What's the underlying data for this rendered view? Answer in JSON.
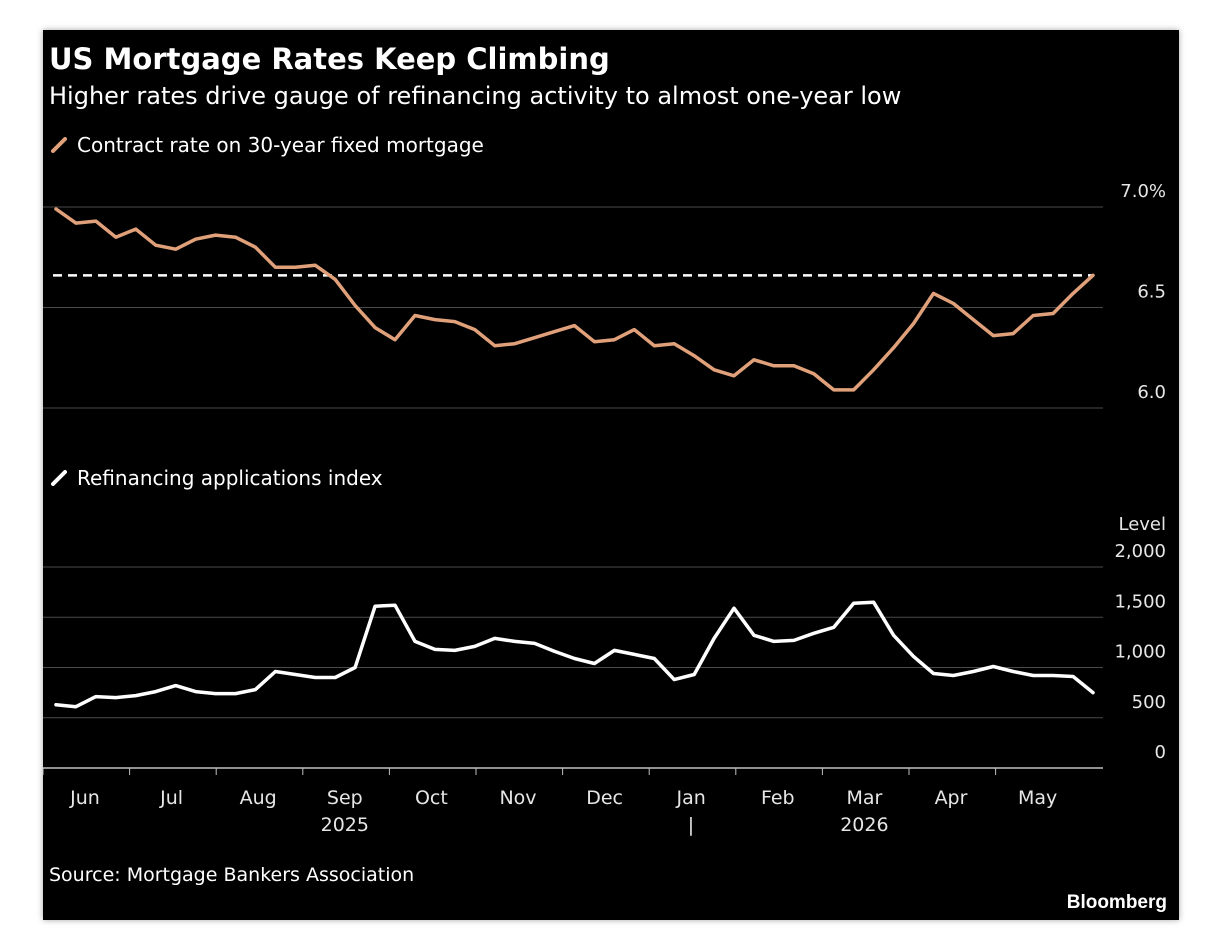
{
  "title": "US Mortgage Rates Keep Climbing",
  "subtitle": "Higher rates drive gauge of refinancing activity to almost one-year low",
  "source": "Source: Mortgage Bankers Association",
  "brand": "Bloomberg",
  "colors": {
    "background": "#000000",
    "rate_line": "#e0a07a",
    "refi_line": "#ffffff",
    "grid": "#4a4a4a"
  },
  "chart_data": [
    {
      "type": "line",
      "legend": "Contract rate on 30-year fixed mortgage",
      "y_ticks": [
        {
          "value": 7.0,
          "label": "7.0%"
        },
        {
          "value": 6.5,
          "label": "6.5"
        },
        {
          "value": 6.0,
          "label": "6.0"
        }
      ],
      "ylim": [
        6.0,
        7.0
      ],
      "reference_line": {
        "value": 6.66,
        "style": "dashed"
      },
      "series": [
        {
          "values": [
            6.99,
            6.92,
            6.93,
            6.85,
            6.89,
            6.81,
            6.79,
            6.84,
            6.86,
            6.85,
            6.8,
            6.7,
            6.7,
            6.71,
            6.64,
            6.51,
            6.4,
            6.34,
            6.46,
            6.44,
            6.43,
            6.39,
            6.31,
            6.32,
            6.35,
            6.38,
            6.41,
            6.33,
            6.34,
            6.39,
            6.31,
            6.32,
            6.26,
            6.19,
            6.16,
            6.24,
            6.21,
            6.21,
            6.17,
            6.09,
            6.09,
            6.19,
            6.3,
            6.42,
            6.57,
            6.52,
            6.44,
            6.36,
            6.37,
            6.46,
            6.47,
            6.57,
            6.66
          ]
        }
      ]
    },
    {
      "type": "line",
      "legend": "Refinancing applications index",
      "y_unit_label": "Level",
      "y_ticks": [
        {
          "value": 2000,
          "label": "2,000"
        },
        {
          "value": 1500,
          "label": "1,500"
        },
        {
          "value": 1000,
          "label": "1,000"
        },
        {
          "value": 500,
          "label": "500"
        },
        {
          "value": 0,
          "label": "0"
        }
      ],
      "ylim": [
        0,
        2000
      ],
      "series": [
        {
          "values": [
            630,
            610,
            710,
            700,
            720,
            760,
            820,
            760,
            740,
            740,
            780,
            960,
            930,
            900,
            900,
            1000,
            1610,
            1620,
            1260,
            1180,
            1170,
            1210,
            1290,
            1260,
            1240,
            1160,
            1090,
            1040,
            1170,
            1130,
            1090,
            880,
            930,
            1290,
            1590,
            1320,
            1260,
            1270,
            1340,
            1400,
            1640,
            1650,
            1320,
            1110,
            940,
            920,
            960,
            1010,
            960,
            920,
            920,
            910,
            750
          ]
        }
      ]
    }
  ],
  "x_axis": {
    "months": [
      "Jun",
      "Jul",
      "Aug",
      "Sep",
      "Oct",
      "Nov",
      "Dec",
      "Jan",
      "Feb",
      "Mar",
      "Apr",
      "May"
    ],
    "years": [
      {
        "label": "2025",
        "under": "Sep"
      },
      {
        "label": "2026",
        "under": "Mar"
      }
    ],
    "year_divider": "|"
  }
}
